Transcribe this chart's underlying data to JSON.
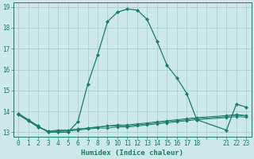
{
  "xlabel": "Humidex (Indice chaleur)",
  "background_color": "#cce8e8",
  "grid_color": "#aacece",
  "line_color": "#1a7a6e",
  "xlim": [
    -0.5,
    23.5
  ],
  "ylim": [
    12.8,
    19.2
  ],
  "xtick_positions": [
    0,
    1,
    2,
    3,
    4,
    5,
    6,
    7,
    8,
    9,
    10,
    11,
    12,
    13,
    14,
    15,
    16,
    17,
    18,
    19,
    20,
    21,
    22,
    23
  ],
  "xtick_labels": [
    "0",
    "1",
    "2",
    "3",
    "4",
    "5",
    "6",
    "7",
    "8",
    "9",
    "10",
    "11",
    "12",
    "13",
    "14",
    "15",
    "16",
    "17",
    "18",
    "",
    "",
    "21",
    "22",
    "23"
  ],
  "ytick_positions": [
    13,
    14,
    15,
    16,
    17,
    18,
    19
  ],
  "ytick_labels": [
    "13",
    "14",
    "15",
    "16",
    "17",
    "18",
    "19"
  ],
  "series": [
    {
      "x": [
        0,
        1,
        2,
        3,
        4,
        5,
        6,
        7,
        8,
        9,
        10,
        11,
        12,
        13,
        14,
        15,
        16,
        17,
        18,
        21,
        22,
        23
      ],
      "y": [
        13.9,
        13.6,
        13.3,
        13.0,
        13.0,
        13.0,
        13.5,
        15.3,
        16.7,
        18.3,
        18.75,
        18.9,
        18.85,
        18.4,
        17.35,
        16.2,
        15.6,
        14.85,
        13.6,
        13.1,
        14.35,
        14.2
      ]
    },
    {
      "x": [
        0,
        1,
        2,
        3,
        4,
        5,
        6,
        7,
        8,
        9,
        10,
        11,
        12,
        13,
        14,
        15,
        16,
        17,
        18,
        21,
        22,
        23
      ],
      "y": [
        13.85,
        13.55,
        13.25,
        13.05,
        13.05,
        13.1,
        13.15,
        13.2,
        13.25,
        13.3,
        13.35,
        13.35,
        13.4,
        13.45,
        13.5,
        13.55,
        13.6,
        13.65,
        13.7,
        13.8,
        13.85,
        13.8
      ]
    },
    {
      "x": [
        0,
        1,
        2,
        3,
        4,
        5,
        6,
        7,
        8,
        9,
        10,
        11,
        12,
        13,
        14,
        15,
        16,
        17,
        18,
        21,
        22,
        23
      ],
      "y": [
        13.85,
        13.55,
        13.25,
        13.05,
        13.05,
        13.05,
        13.1,
        13.15,
        13.2,
        13.2,
        13.25,
        13.25,
        13.3,
        13.35,
        13.4,
        13.45,
        13.5,
        13.55,
        13.6,
        13.7,
        13.75,
        13.72
      ]
    },
    {
      "x": [
        0,
        1,
        2,
        3,
        4,
        5,
        6,
        7,
        8,
        9,
        10,
        11,
        12,
        13,
        14,
        15,
        16,
        17,
        18,
        21,
        22,
        23
      ],
      "y": [
        13.85,
        13.55,
        13.25,
        13.05,
        13.1,
        13.1,
        13.15,
        13.2,
        13.25,
        13.3,
        13.3,
        13.3,
        13.35,
        13.4,
        13.45,
        13.5,
        13.55,
        13.6,
        13.65,
        13.75,
        13.82,
        13.78
      ]
    }
  ]
}
